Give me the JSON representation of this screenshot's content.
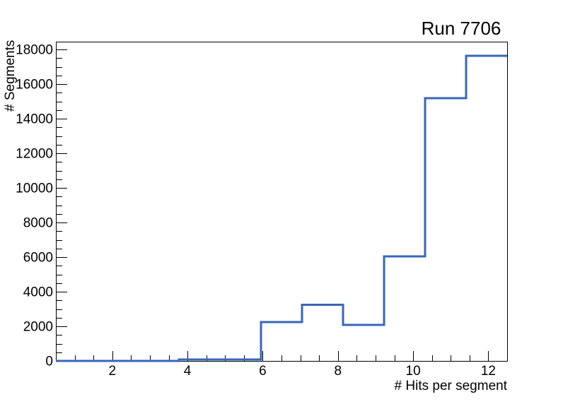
{
  "chart_data": {
    "type": "step-histogram",
    "title": "Run 7706",
    "xlabel": "# Hits per segment",
    "ylabel": "# Segments",
    "xlim": [
      0.5,
      12.5
    ],
    "ylim": [
      0,
      18450
    ],
    "bin_edges": [
      0.5,
      1.591,
      2.682,
      3.773,
      4.864,
      5.955,
      7.045,
      8.136,
      9.227,
      10.318,
      11.409,
      12.5
    ],
    "counts": [
      0,
      0,
      0,
      90,
      90,
      2240,
      3250,
      2080,
      6050,
      15190,
      17630
    ],
    "x_major_ticks": [
      2,
      4,
      6,
      8,
      10,
      12
    ],
    "x_tick_labels": [
      "2",
      "4",
      "6",
      "8",
      "10",
      "12"
    ],
    "x_minor_step": 0.5,
    "y_major_step": 2000,
    "y_minor_step": 500,
    "y_tick_labels": [
      "0",
      "2000",
      "4000",
      "6000",
      "8000",
      "10000",
      "12000",
      "14000",
      "16000",
      "18000"
    ],
    "line_color": "#3766bb",
    "axis_color": "#000000",
    "background_color": "#ffffff",
    "grid": false
  }
}
